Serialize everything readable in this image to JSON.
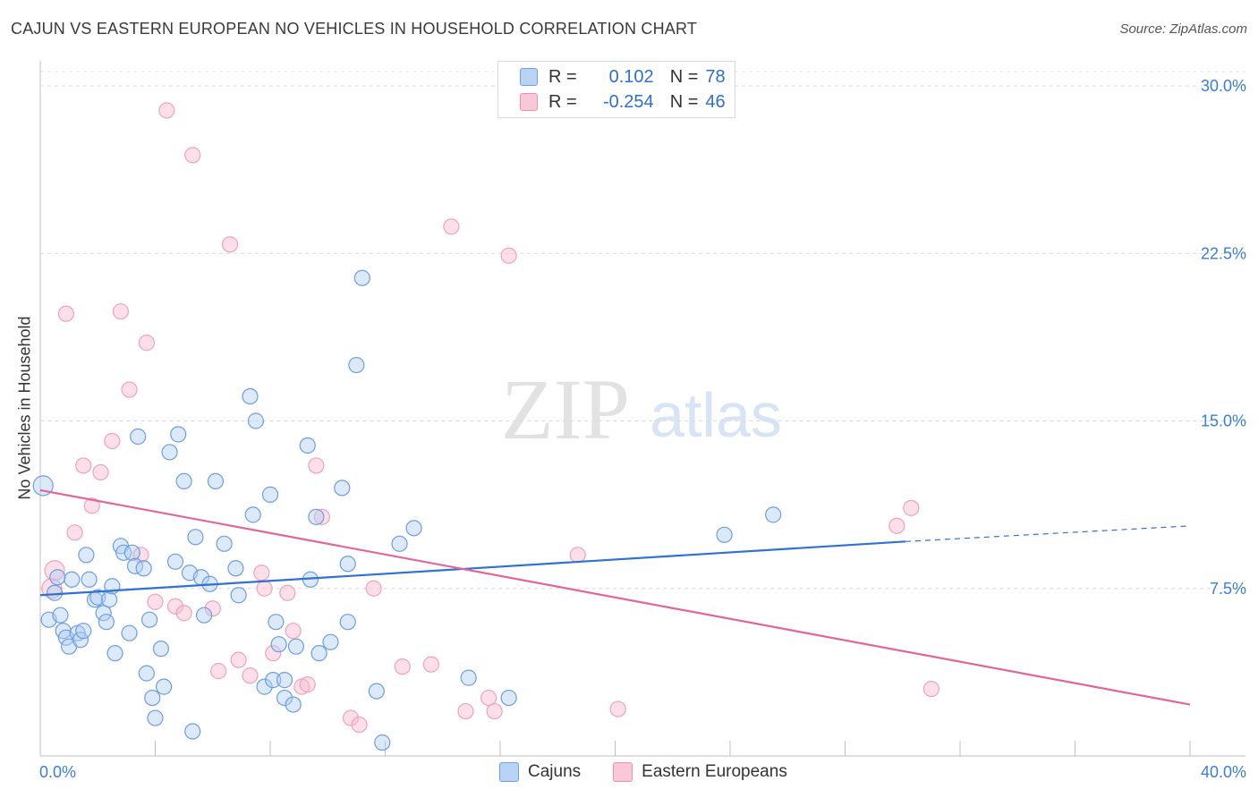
{
  "title": "CAJUN VS EASTERN EUROPEAN NO VEHICLES IN HOUSEHOLD CORRELATION CHART",
  "source": "Source: ZipAtlas.com",
  "watermark": {
    "zip": "ZIP",
    "atlas": "atlas"
  },
  "legend": {
    "r_label": "R =",
    "n_label": "N =",
    "rows": [
      {
        "r": "0.102",
        "n": "78",
        "fill": "#b9d3f4",
        "stroke": "#6f9fe0"
      },
      {
        "r": "-0.254",
        "n": "46",
        "fill": "#fbc8d8",
        "stroke": "#ee8fae"
      }
    ]
  },
  "bottom_legend": [
    "Cajuns",
    "Eastern Europeans"
  ],
  "chart_data": {
    "type": "scatter",
    "title": "CAJUN VS EASTERN EUROPEAN NO VEHICLES IN HOUSEHOLD CORRELATION CHART",
    "xlabel": "",
    "ylabel": "No Vehicles in Household",
    "xlim": [
      0,
      40
    ],
    "ylim": [
      0,
      30
    ],
    "x_tick_labels": [
      "0.0%",
      "40.0%"
    ],
    "y_ticks": [
      7.5,
      15.0,
      22.5,
      30.0
    ],
    "y_tick_labels": [
      "7.5%",
      "15.0%",
      "22.5%",
      "30.0%"
    ],
    "grid": true,
    "legend_placement": "top-center",
    "colors": {
      "cajuns": "#3b7dd8",
      "eastern_europeans": "#e8709a"
    },
    "series": [
      {
        "name": "Cajuns",
        "r": 0.102,
        "n": 78,
        "trend": {
          "x": [
            0,
            30.1
          ],
          "y": [
            7.2,
            9.6
          ],
          "dashed_to": [
            40,
            10.3
          ]
        },
        "points": [
          [
            0.1,
            12.1
          ],
          [
            0.3,
            6.1
          ],
          [
            0.5,
            7.3
          ],
          [
            0.6,
            8.0
          ],
          [
            0.7,
            6.3
          ],
          [
            0.8,
            5.6
          ],
          [
            0.9,
            5.3
          ],
          [
            1.0,
            4.9
          ],
          [
            1.1,
            7.9
          ],
          [
            1.3,
            5.5
          ],
          [
            1.4,
            5.2
          ],
          [
            1.5,
            5.6
          ],
          [
            1.6,
            9.0
          ],
          [
            1.7,
            7.9
          ],
          [
            1.9,
            7.0
          ],
          [
            2.0,
            7.1
          ],
          [
            2.2,
            6.4
          ],
          [
            2.3,
            6.0
          ],
          [
            2.4,
            7.0
          ],
          [
            2.5,
            7.6
          ],
          [
            2.6,
            4.6
          ],
          [
            2.8,
            9.4
          ],
          [
            2.9,
            9.1
          ],
          [
            3.1,
            5.5
          ],
          [
            3.2,
            9.1
          ],
          [
            3.3,
            8.5
          ],
          [
            3.4,
            14.3
          ],
          [
            3.6,
            8.4
          ],
          [
            3.7,
            3.7
          ],
          [
            3.8,
            6.1
          ],
          [
            3.9,
            2.6
          ],
          [
            4.0,
            1.7
          ],
          [
            4.2,
            4.8
          ],
          [
            4.3,
            3.1
          ],
          [
            4.5,
            13.6
          ],
          [
            4.7,
            8.7
          ],
          [
            4.8,
            14.4
          ],
          [
            5.0,
            12.3
          ],
          [
            5.2,
            8.2
          ],
          [
            5.4,
            9.8
          ],
          [
            5.3,
            1.1
          ],
          [
            5.6,
            8.0
          ],
          [
            5.7,
            6.3
          ],
          [
            5.9,
            7.7
          ],
          [
            6.1,
            12.3
          ],
          [
            6.4,
            9.5
          ],
          [
            6.8,
            8.4
          ],
          [
            6.9,
            7.2
          ],
          [
            7.3,
            16.1
          ],
          [
            7.4,
            10.8
          ],
          [
            7.5,
            15.0
          ],
          [
            7.8,
            3.1
          ],
          [
            8.0,
            11.7
          ],
          [
            8.1,
            3.4
          ],
          [
            8.2,
            6.0
          ],
          [
            8.3,
            5.0
          ],
          [
            8.5,
            3.4
          ],
          [
            8.5,
            2.6
          ],
          [
            8.8,
            2.3
          ],
          [
            8.9,
            4.9
          ],
          [
            9.3,
            13.9
          ],
          [
            9.4,
            7.9
          ],
          [
            9.6,
            10.7
          ],
          [
            9.7,
            4.6
          ],
          [
            10.1,
            5.1
          ],
          [
            10.5,
            12.0
          ],
          [
            10.7,
            8.6
          ],
          [
            10.7,
            6.0
          ],
          [
            11.0,
            17.5
          ],
          [
            11.2,
            21.4
          ],
          [
            11.7,
            2.9
          ],
          [
            11.9,
            0.6
          ],
          [
            12.5,
            9.5
          ],
          [
            13.0,
            10.2
          ],
          [
            14.9,
            3.5
          ],
          [
            16.3,
            2.6
          ],
          [
            23.8,
            9.9
          ],
          [
            25.5,
            10.8
          ]
        ]
      },
      {
        "name": "Eastern Europeans",
        "r": -0.254,
        "n": 46,
        "trend": {
          "x": [
            0,
            40
          ],
          "y": [
            11.9,
            2.3
          ]
        },
        "points": [
          [
            0.4,
            7.5
          ],
          [
            0.5,
            8.3
          ],
          [
            0.9,
            19.8
          ],
          [
            1.2,
            10.0
          ],
          [
            1.5,
            13.0
          ],
          [
            1.8,
            11.2
          ],
          [
            2.1,
            12.7
          ],
          [
            2.5,
            14.1
          ],
          [
            2.8,
            19.9
          ],
          [
            3.1,
            16.4
          ],
          [
            3.5,
            9.0
          ],
          [
            3.7,
            18.5
          ],
          [
            4.0,
            6.9
          ],
          [
            4.4,
            28.9
          ],
          [
            4.7,
            6.7
          ],
          [
            5.0,
            6.4
          ],
          [
            5.3,
            26.9
          ],
          [
            6.0,
            6.6
          ],
          [
            6.2,
            3.8
          ],
          [
            6.6,
            22.9
          ],
          [
            6.9,
            4.3
          ],
          [
            7.3,
            3.6
          ],
          [
            7.7,
            8.2
          ],
          [
            7.8,
            7.5
          ],
          [
            8.1,
            4.6
          ],
          [
            8.6,
            7.3
          ],
          [
            8.8,
            5.6
          ],
          [
            9.1,
            3.1
          ],
          [
            9.3,
            3.2
          ],
          [
            9.6,
            13.0
          ],
          [
            9.8,
            10.7
          ],
          [
            10.8,
            1.7
          ],
          [
            11.1,
            1.4
          ],
          [
            11.6,
            7.5
          ],
          [
            12.6,
            4.0
          ],
          [
            13.6,
            4.1
          ],
          [
            14.3,
            23.7
          ],
          [
            14.8,
            2.0
          ],
          [
            15.6,
            2.6
          ],
          [
            15.8,
            2.0
          ],
          [
            16.3,
            22.4
          ],
          [
            18.7,
            9.0
          ],
          [
            20.1,
            2.1
          ],
          [
            29.8,
            10.3
          ],
          [
            30.3,
            11.1
          ],
          [
            31.0,
            3.0
          ]
        ]
      }
    ]
  }
}
